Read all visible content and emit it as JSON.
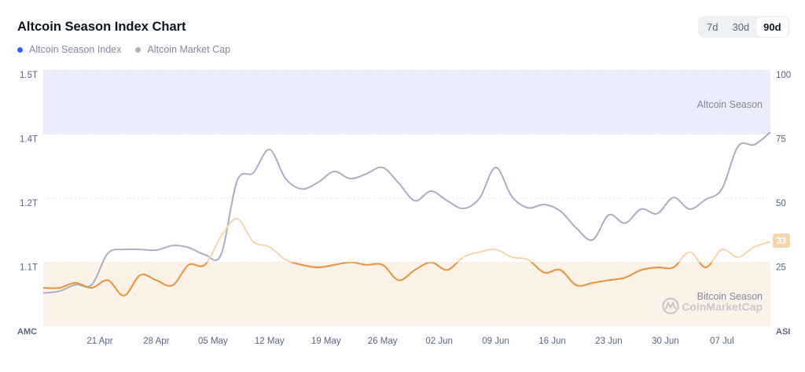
{
  "header": {
    "title": "Altcoin Season Index Chart",
    "legend": [
      {
        "label": "Altcoin Season Index",
        "color": "#3861fb"
      },
      {
        "label": "Altcoin Market Cap",
        "color": "#a6b0c3"
      }
    ],
    "ranges": [
      {
        "label": "7d",
        "active": false
      },
      {
        "label": "30d",
        "active": false
      },
      {
        "label": "90d",
        "active": true
      }
    ]
  },
  "chart_data": {
    "type": "line",
    "title": "Altcoin Season Index Chart",
    "left_axis": {
      "name": "AMC",
      "ticks": [
        "1.5T",
        "1.4T",
        "1.2T",
        "1.1T"
      ],
      "tick_values": [
        1.5,
        1.4,
        1.2,
        1.1
      ]
    },
    "right_axis": {
      "name": "ASI",
      "ticks": [
        100,
        75,
        50,
        25
      ],
      "ylim": [
        0,
        100
      ]
    },
    "x_ticks": [
      "21 Apr",
      "28 Apr",
      "05 May",
      "12 May",
      "19 May",
      "26 May",
      "02 Jun",
      "09 Jun",
      "16 Jun",
      "23 Jun",
      "30 Jun",
      "07 Jul"
    ],
    "bands": [
      {
        "label": "Altcoin Season",
        "from": 75,
        "to": 100,
        "color": "#ebedfd"
      },
      {
        "label": "Bitcoin Season",
        "from": 0,
        "to": 25,
        "color": "#fdf2e8"
      }
    ],
    "grid": true,
    "legend_position": "top-left",
    "x": [
      "14 Apr",
      "16 Apr",
      "18 Apr",
      "20 Apr",
      "22 Apr",
      "24 Apr",
      "26 Apr",
      "28 Apr",
      "30 Apr",
      "02 May",
      "04 May",
      "06 May",
      "08 May",
      "10 May",
      "12 May",
      "14 May",
      "16 May",
      "18 May",
      "20 May",
      "22 May",
      "24 May",
      "26 May",
      "28 May",
      "30 May",
      "01 Jun",
      "03 Jun",
      "05 Jun",
      "07 Jun",
      "09 Jun",
      "11 Jun",
      "13 Jun",
      "15 Jun",
      "17 Jun",
      "19 Jun",
      "21 Jun",
      "23 Jun",
      "25 Jun",
      "27 Jun",
      "29 Jun",
      "01 Jul",
      "03 Jul",
      "05 Jul",
      "07 Jul",
      "09 Jul",
      "11 Jul",
      "13 Jul"
    ],
    "series": [
      {
        "name": "Altcoin Season Index",
        "axis": "right",
        "color_below": "#e8933a",
        "color_above": "#f6d5ad",
        "values": [
          15,
          15,
          17,
          15,
          18,
          12,
          20,
          18,
          16,
          24,
          24,
          35,
          42,
          33,
          31,
          26,
          24,
          23,
          24,
          25,
          24,
          24,
          18,
          22,
          25,
          22,
          27,
          29,
          30,
          27,
          26,
          21,
          22,
          16,
          17,
          18,
          19,
          22,
          23,
          23,
          29,
          23,
          30,
          27,
          31,
          33
        ]
      },
      {
        "name": "Altcoin Market Cap",
        "axis": "left",
        "unit": "T",
        "color": "#a9aec3",
        "values": [
          1.052,
          1.055,
          1.065,
          1.065,
          1.114,
          1.12,
          1.12,
          1.119,
          1.126,
          1.123,
          1.112,
          1.112,
          1.254,
          1.279,
          1.352,
          1.261,
          1.229,
          1.249,
          1.283,
          1.261,
          1.276,
          1.296,
          1.247,
          1.196,
          1.222,
          1.196,
          1.184,
          1.2,
          1.296,
          1.205,
          1.185,
          1.19,
          1.18,
          1.153,
          1.135,
          1.174,
          1.161,
          1.183,
          1.176,
          1.202,
          1.183,
          1.198,
          1.229,
          1.362,
          1.367,
          1.403
        ]
      }
    ],
    "current_value_badge": "33",
    "watermark": "CoinMarketCap"
  }
}
